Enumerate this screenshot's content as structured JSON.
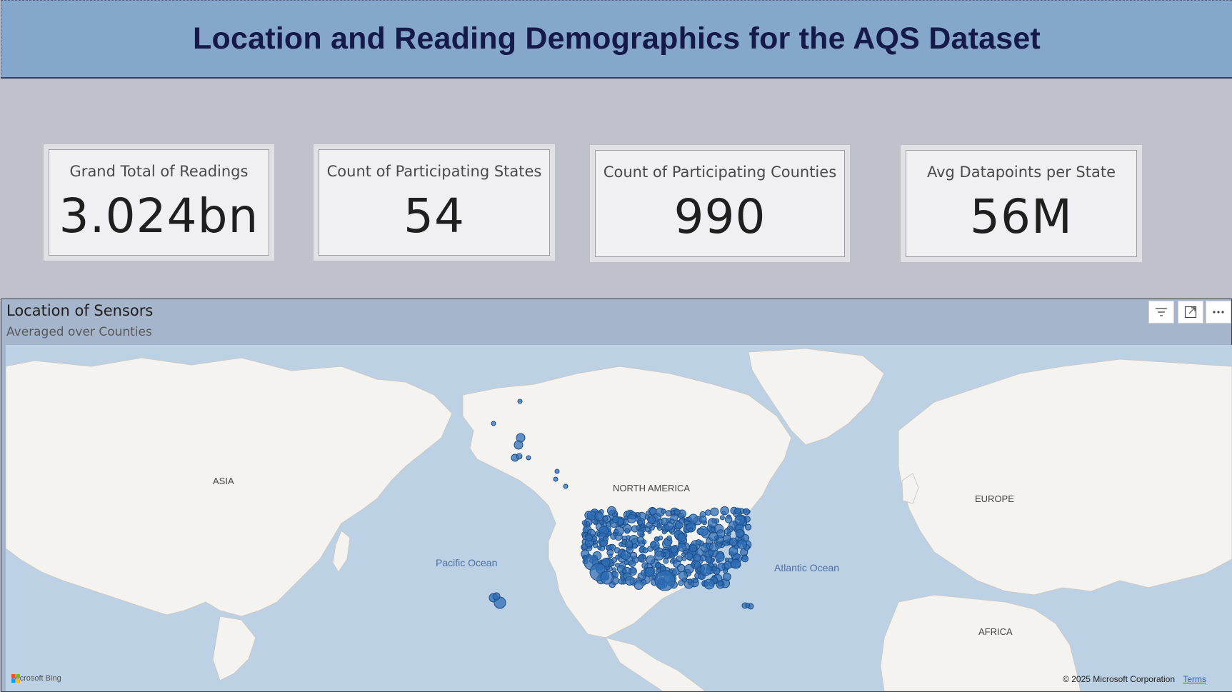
{
  "header": {
    "title": "Location and Reading Demographics for the AQS Dataset"
  },
  "kpis": [
    {
      "label": "Grand Total of Readings",
      "value": "3.024bn"
    },
    {
      "label": "Count of Participating States",
      "value": "54"
    },
    {
      "label": "Count of Participating Counties",
      "value": "990"
    },
    {
      "label": "Avg Datapoints per State",
      "value": "56M"
    }
  ],
  "map": {
    "title": "Location of Sensors",
    "subtitle": "Averaged over Counties",
    "labels": {
      "asia": "ASIA",
      "north_america": "NORTH AMERICA",
      "europe": "EUROPE",
      "africa": "AFRICA",
      "pacific": "Pacific Ocean",
      "atlantic": "Atlantic Ocean"
    },
    "bing_label": "Microsoft Bing",
    "copyright": "© 2025 Microsoft Corporation",
    "terms": "Terms",
    "bubble_color": "#2f6eb5"
  }
}
